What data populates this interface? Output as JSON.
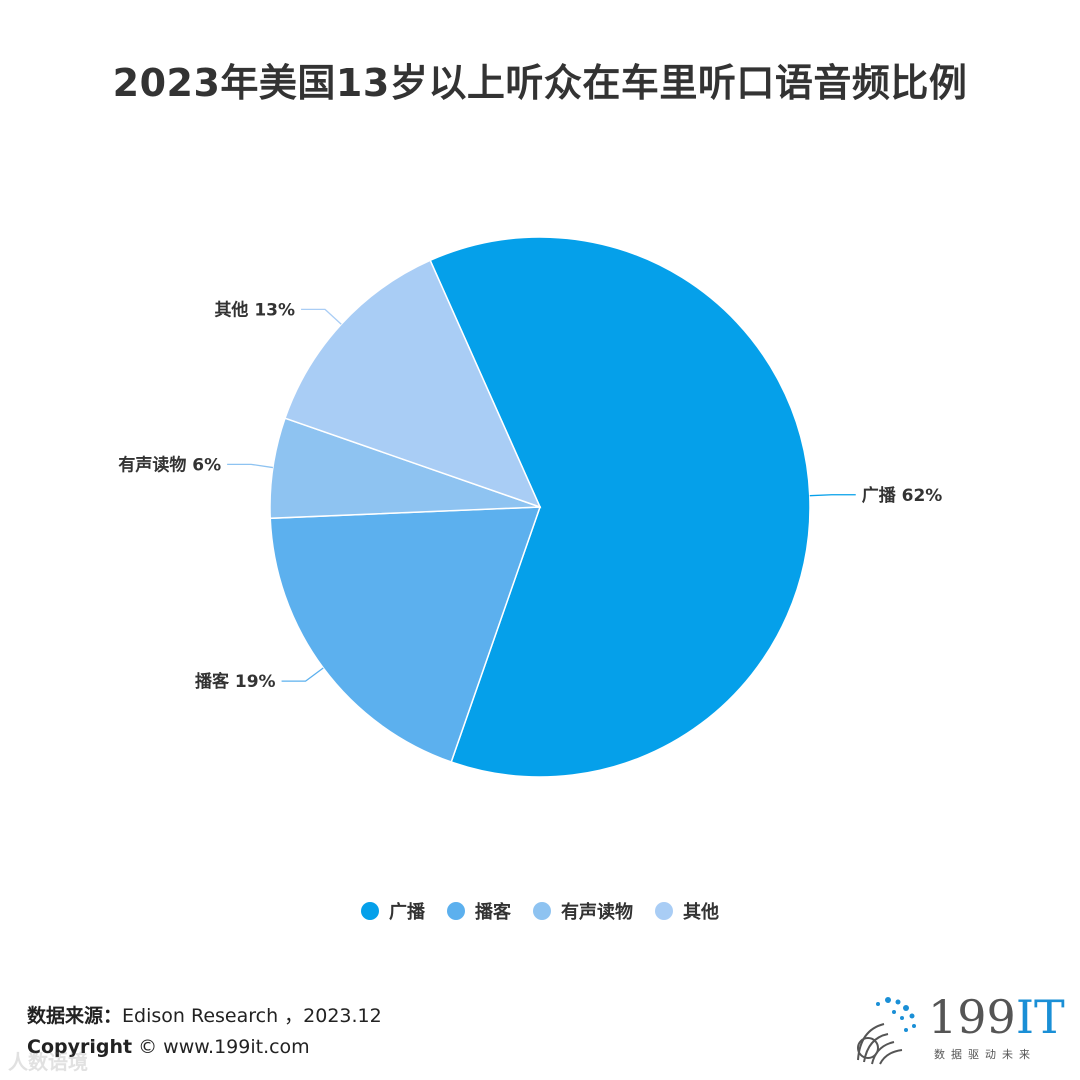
{
  "chart_data": {
    "type": "pie",
    "title": "2023年美国13岁以上听众在车里听口语音频比例",
    "categories": [
      "广播",
      "播客",
      "有声读物",
      "其他"
    ],
    "values": [
      62,
      19,
      6,
      13
    ],
    "labels": [
      "广播 62%",
      "播客 19%",
      "有声读物 6%",
      "其他 13%"
    ],
    "colors": [
      "#05a0ea",
      "#5cb0ee",
      "#8ec3f1",
      "#a9cdf5"
    ],
    "legend_position": "bottom"
  },
  "footer": {
    "source_label": "数据来源：",
    "source_text": "Edison Research ，2023.12",
    "copyright_label": "Copyright",
    "copyright_text": " © www.199it.com"
  },
  "watermark": "人数语境",
  "logo": {
    "text_number": "199",
    "text_it": "IT",
    "tagline": "数据驱动未来"
  }
}
